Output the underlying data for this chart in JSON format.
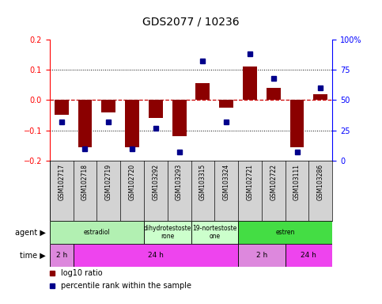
{
  "title": "GDS2077 / 10236",
  "samples": [
    "GSM102717",
    "GSM102718",
    "GSM102719",
    "GSM102720",
    "GSM103292",
    "GSM103293",
    "GSM103315",
    "GSM103324",
    "GSM102721",
    "GSM102722",
    "GSM103111",
    "GSM103286"
  ],
  "log10_ratio": [
    -0.05,
    -0.155,
    -0.04,
    -0.155,
    -0.06,
    -0.12,
    0.055,
    -0.025,
    0.11,
    0.04,
    -0.155,
    0.02
  ],
  "percentile_rank": [
    32,
    10,
    32,
    10,
    27,
    7,
    82,
    32,
    88,
    68,
    7,
    60
  ],
  "ylim_left": [
    -0.2,
    0.2
  ],
  "ylim_right": [
    0,
    100
  ],
  "yticks_left": [
    -0.2,
    -0.1,
    0.0,
    0.1,
    0.2
  ],
  "yticks_right": [
    0,
    25,
    50,
    75,
    100
  ],
  "bar_color": "#8B0000",
  "marker_color": "#00008B",
  "zero_line_color": "#cc0000",
  "grid_color": "black",
  "agent_groups": [
    {
      "label": "estradiol",
      "start": 0,
      "end": 4,
      "color": "#b2f0b2"
    },
    {
      "label": "dihydrotestoste\nrone",
      "start": 4,
      "end": 6,
      "color": "#ccffcc"
    },
    {
      "label": "19-nortestoste\none",
      "start": 6,
      "end": 8,
      "color": "#ccffcc"
    },
    {
      "label": "estren",
      "start": 8,
      "end": 12,
      "color": "#44dd44"
    }
  ],
  "time_groups": [
    {
      "label": "2 h",
      "start": 0,
      "end": 1,
      "color": "#dd88dd"
    },
    {
      "label": "24 h",
      "start": 1,
      "end": 8,
      "color": "#ee44ee"
    },
    {
      "label": "2 h",
      "start": 8,
      "end": 10,
      "color": "#dd88dd"
    },
    {
      "label": "24 h",
      "start": 10,
      "end": 12,
      "color": "#ee44ee"
    }
  ],
  "bg_color": "#ffffff",
  "plot_bg_color": "#ffffff",
  "tick_label_area_color": "#d3d3d3",
  "bar_color_legend": "#cc0000",
  "marker_color_legend": "#0000cc"
}
